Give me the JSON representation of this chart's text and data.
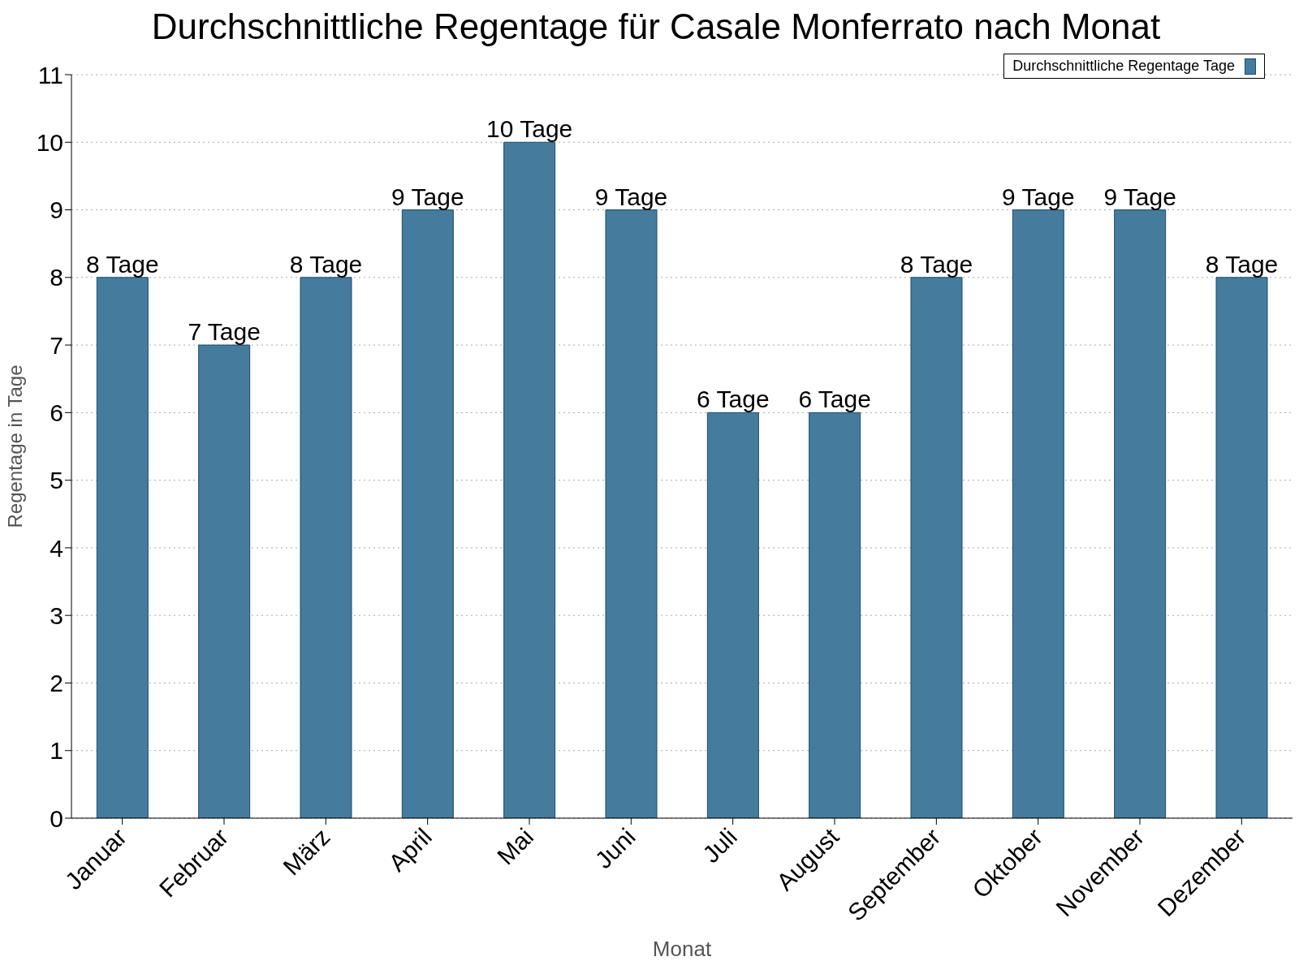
{
  "chart_data": {
    "type": "bar",
    "title": "Durchschnittliche Regentage für Casale Monferrato nach Monat",
    "xlabel": "Monat",
    "ylabel": "Regentage in Tage",
    "categories": [
      "Januar",
      "Februar",
      "März",
      "April",
      "Mai",
      "Juni",
      "Juli",
      "August",
      "September",
      "Oktober",
      "November",
      "Dezember"
    ],
    "series": [
      {
        "name": "Durchschnittliche Regentage Tage",
        "color": "#457b9d",
        "values": [
          8,
          7,
          8,
          9,
          10,
          9,
          6,
          6,
          8,
          9,
          9,
          8
        ],
        "value_labels": [
          "8 Tage",
          "7 Tage",
          "8 Tage",
          "9 Tage",
          "10 Tage",
          "9 Tage",
          "6 Tage",
          "6 Tage",
          "8 Tage",
          "9 Tage",
          "9 Tage",
          "8 Tage"
        ]
      }
    ],
    "ylim": [
      0,
      11
    ],
    "yticks": [
      0,
      1,
      2,
      3,
      4,
      5,
      6,
      7,
      8,
      9,
      10,
      11
    ],
    "grid": "y",
    "legend": "top right"
  }
}
